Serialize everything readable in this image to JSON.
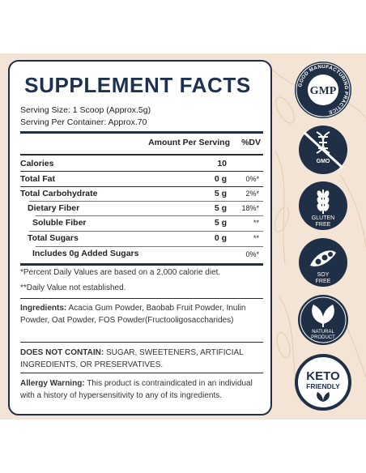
{
  "facts": {
    "title": "SUPPLEMENT FACTS",
    "serving_size": "Serving Size: 1 Scoop (Approx.5g)",
    "serving_per_container": "Serving Per Container: Approx.70",
    "header_amount": "Amount Per Serving",
    "header_dv": "%DV",
    "rows": [
      {
        "name": "Calories",
        "amount": "10",
        "dv": ""
      },
      {
        "name": "Total Fat",
        "amount": "0 g",
        "dv": "0%*"
      },
      {
        "name": "Total Carbohydrate",
        "amount": "5 g",
        "dv": "2%*"
      },
      {
        "name": "Dietary Fiber",
        "amount": "5 g",
        "dv": "18%*"
      },
      {
        "name": "Soluble Fiber",
        "amount": "5 g",
        "dv": "**"
      },
      {
        "name": "Total Sugars",
        "amount": "0 g",
        "dv": "**"
      },
      {
        "name": "Includes 0g Added Sugars",
        "amount": "",
        "dv": "0%*"
      }
    ],
    "footnote1": "*Percent Daily Values are based on a 2,000 calorie diet.",
    "footnote2": "**Daily Value not established.",
    "ingredients_label": "Ingredients:",
    "ingredients_text": "Acacia Gum Powder, Baobab Fruit Powder, Inulin Powder, Oat Powder, FOS Powder(Fructooligosaccharides)",
    "not_contain_label": "DOES NOT CONTAIN:",
    "not_contain_text": "SUGAR, SWEETENERS, ARTIFICIAL INGREDIENTS, OR PRESERVATIVES.",
    "allergy_label": "Allergy Warning:",
    "allergy_text": "This product is contraindicated in an individual with a history of hypersensitivity to any of its ingredients."
  },
  "badges": {
    "gmp_center": "GMP",
    "gmp_ring": "GOOD MANUFACTURING PRACTICE",
    "gmo": "GMO",
    "gluten": "GLUTEN FREE",
    "soy": "SOY FREE",
    "natural": "NATURAL PRODUCT",
    "keto_line1": "KETO",
    "keto_line2": "FRIENDLY"
  },
  "colors": {
    "navy": "#1f2f45",
    "background_band": "#f3e4d5",
    "text": "#222222"
  },
  "icons": [
    "gmp-seal-icon",
    "dna-icon",
    "wheat-icon",
    "soybean-icon",
    "leaf-icon",
    "keto-leaf-icon"
  ]
}
